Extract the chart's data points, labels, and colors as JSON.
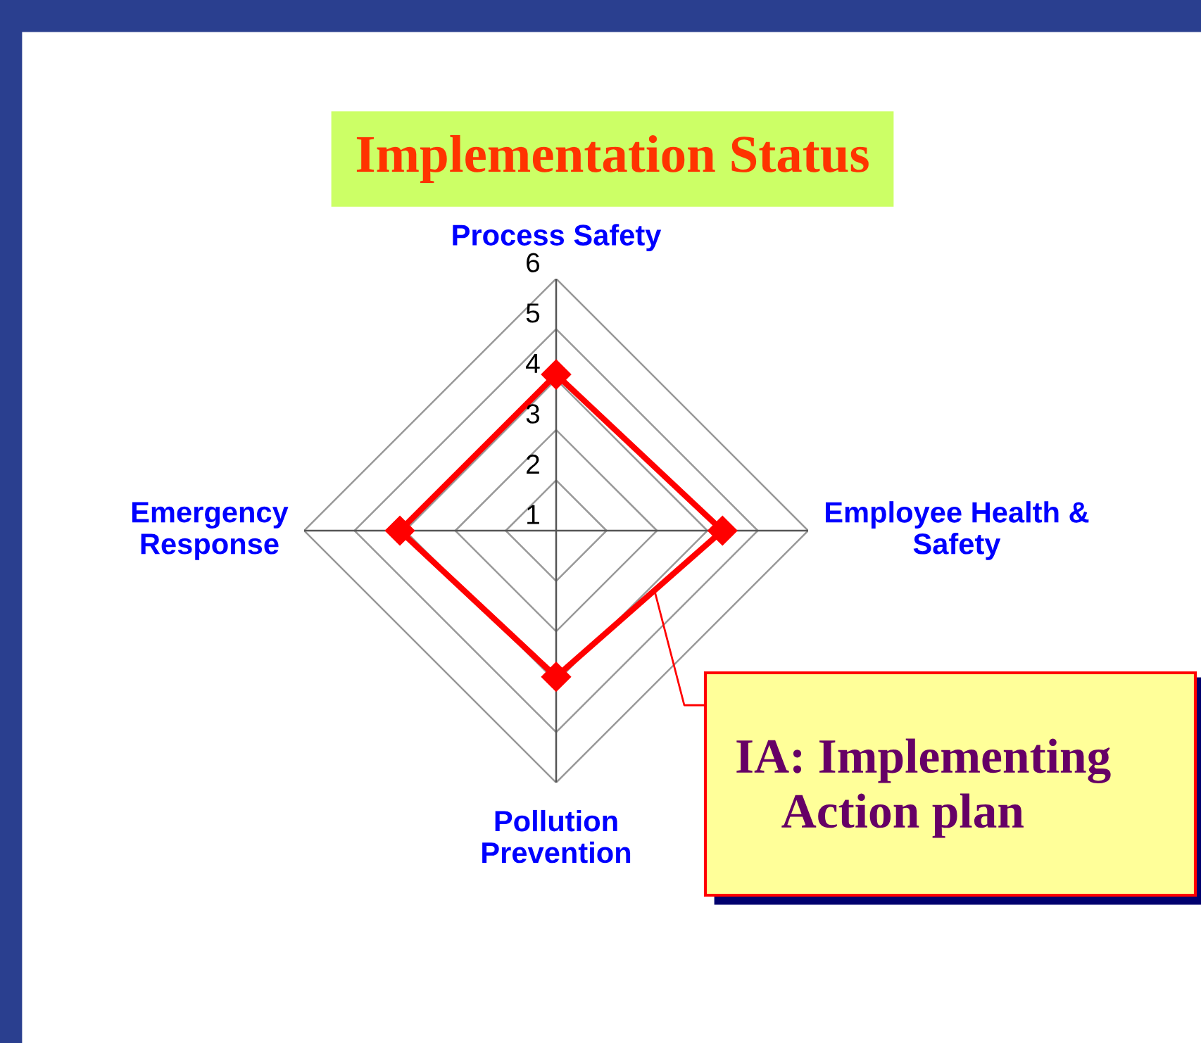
{
  "chart_data": {
    "type": "radar",
    "title": "Implementation Status",
    "categories": [
      "Process Safety",
      "Employee Health &\nSafety",
      "Pollution\nPrevention",
      "Emergency\nResponse"
    ],
    "series": [
      {
        "color": "#ff0000",
        "values": [
          4.1,
          4.3,
          3.9,
          4.1
        ]
      }
    ],
    "ylim": [
      1,
      6
    ],
    "yticks": [
      1,
      2,
      3,
      4,
      5,
      6
    ],
    "grid": true,
    "marker": "diamond",
    "line_style": "solid",
    "annotations": [
      "IA: Implementing\n    Action plan"
    ]
  }
}
